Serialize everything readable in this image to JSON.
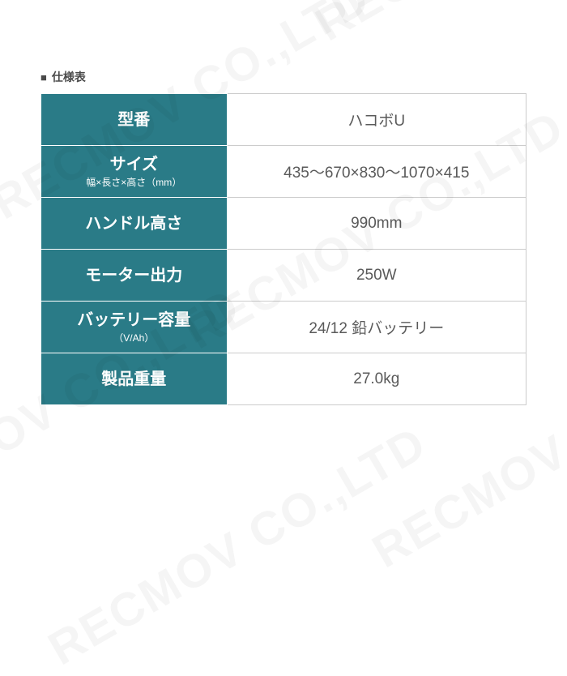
{
  "title": {
    "marker": "■",
    "text": "仕様表"
  },
  "table": {
    "label_bg": "#2a7b87",
    "label_fg": "#ffffff",
    "value_fg": "#5a5a5a",
    "rows": [
      {
        "label": "型番",
        "sub": "",
        "value": "ハコボU"
      },
      {
        "label": "サイズ",
        "sub": "幅×長さ×高さ（mm）",
        "value": "435〜670×830〜1070×415"
      },
      {
        "label": "ハンドル高さ",
        "sub": "",
        "value": "990mm"
      },
      {
        "label": "モーター出力",
        "sub": "",
        "value": "250W"
      },
      {
        "label": "バッテリー容量",
        "sub": "（V/Ah）",
        "value": "24/12 鉛バッテリー"
      },
      {
        "label": "製品重量",
        "sub": "",
        "value": "27.0kg"
      }
    ]
  },
  "watermark": {
    "text": "RECMOV CO.,LTD",
    "color": "rgba(0,0,0,0.04)"
  }
}
